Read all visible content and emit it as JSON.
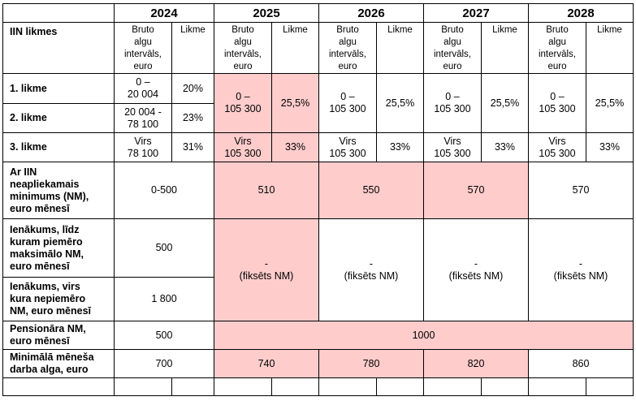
{
  "years": [
    "2024",
    "2025",
    "2026",
    "2027",
    "2028"
  ],
  "iin_label": "IIN likmes",
  "col_range": [
    "Bruto",
    "algu",
    "intervāls,",
    "euro"
  ],
  "col_rate": "Likme",
  "rate_rows": [
    {
      "label": "1. likme"
    },
    {
      "label": "2. likme"
    },
    {
      "label": "3. likme"
    }
  ],
  "r2024": {
    "b1": [
      "0 –",
      "20 004"
    ],
    "l1": "20%",
    "b2": [
      "20 004 -",
      "78 100"
    ],
    "l2": "23%",
    "b3": [
      "Virs",
      "78 100"
    ],
    "l3": "31%"
  },
  "r12": {
    "b": [
      "0 –",
      "105 300"
    ],
    "l": "25,5%"
  },
  "r3": {
    "b": [
      "Virs",
      "105 300"
    ],
    "l": "33%"
  },
  "nm": {
    "label": [
      "Ar IIN",
      "neapliekamais",
      "minimums (NM),",
      "euro mēnesī"
    ],
    "values": [
      "0-500",
      "510",
      "550",
      "570",
      "570"
    ]
  },
  "inc_low": {
    "label": [
      "Ienākums, līdz",
      "kuram piemēro",
      "maksimālo NM,",
      "euro mēnesī"
    ],
    "v2024": "500"
  },
  "inc_high": {
    "label": [
      "Ienākums, virs",
      "kura nepiemēro",
      "NM, euro mēnesī"
    ],
    "v2024": "1 800"
  },
  "fixed": {
    "dash": "-",
    "text": "(fiksēts NM)"
  },
  "pension": {
    "label": [
      "Pensionāra NM,",
      "euro mēnesī"
    ],
    "v2024": "500",
    "v_rest": "1000"
  },
  "minwage": {
    "label": [
      "Minimālā mēneša",
      "darba alga, euro"
    ],
    "values": [
      "700",
      "740",
      "780",
      "820",
      "860"
    ]
  },
  "colors": {
    "highlight": "#ffcccc",
    "border": "#000000"
  }
}
